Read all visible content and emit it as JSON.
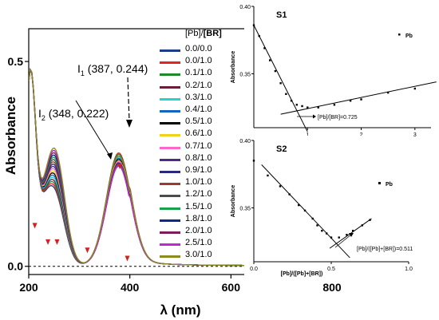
{
  "chart_data": [
    {
      "type": "line",
      "xlabel": "λ (nm)",
      "ylabel": "Absorbance",
      "xlim": [
        200,
        800
      ],
      "ylim": [
        -0.02,
        0.58
      ],
      "x_ticks": [
        "200",
        "400",
        "600",
        "800"
      ],
      "y_ticks": [
        "0.0",
        "0.5"
      ],
      "legend_title_prefix": "[Pb]/",
      "legend_title_bold": "[BR]",
      "legend_position": "right-of-plot",
      "series": [
        {
          "name": "0.0/0.0",
          "color": "#1e3a8a",
          "peak": 0.25
        },
        {
          "name": "0.0/1.0",
          "color": "#e8231f",
          "peak": 0.275
        },
        {
          "name": "0.1/1.0",
          "color": "#1f8a2b",
          "peak": 0.272
        },
        {
          "name": "0.2/1.0",
          "color": "#6b1d3a",
          "peak": 0.268
        },
        {
          "name": "0.3/1.0",
          "color": "#2ad1cc",
          "peak": 0.265
        },
        {
          "name": "0.4/1.0",
          "color": "#1565c0",
          "peak": 0.262
        },
        {
          "name": "0.5/1.0",
          "color": "#000000",
          "peak": 0.259
        },
        {
          "name": "0.6/1.0",
          "color": "#f0d21a",
          "peak": 0.256
        },
        {
          "name": "0.7/1.0",
          "color": "#ff66cc",
          "peak": 0.254
        },
        {
          "name": "0.8/1.0",
          "color": "#4b2a8c",
          "peak": 0.251
        },
        {
          "name": "0.9/1.0",
          "color": "#2a2a7a",
          "peak": 0.249
        },
        {
          "name": "1.0/1.0",
          "color": "#9b3b2f",
          "peak": 0.247
        },
        {
          "name": "1.2/1.0",
          "color": "#4c4c4c",
          "peak": 0.246
        },
        {
          "name": "1.5/1.0",
          "color": "#17a34a",
          "peak": 0.245
        },
        {
          "name": "1.8/1.0",
          "color": "#0d2a8a",
          "peak": 0.244
        },
        {
          "name": "2.0/1.0",
          "color": "#7a1f5a",
          "peak": 0.243
        },
        {
          "name": "2.5/1.0",
          "color": "#c026d3",
          "peak": 0.244
        },
        {
          "name": "3.0/1.0",
          "color": "#8a8a1f",
          "peak": 0.268
        }
      ],
      "annotations": [
        {
          "label_main": "I",
          "label_sub": "1",
          "label_tail": " (387, 0.244)"
        },
        {
          "label_main": "I",
          "label_sub": "2",
          "label_tail": " (348, 0.222)"
        }
      ]
    },
    {
      "type": "scatter",
      "panel_title": "S1",
      "xlabel": "[Pb]/[BR]",
      "ylabel": "Absorbance",
      "xlim": [
        0,
        3.3
      ],
      "ylim": [
        0.31,
        0.4
      ],
      "x_ticks": [
        "1",
        "2",
        "3"
      ],
      "y_ticks": [
        "0.40",
        "0.35"
      ],
      "legend": "Pb",
      "annotation": "[Pb]/[BR]=0.725",
      "points": [
        [
          0.0,
          0.386
        ],
        [
          0.1,
          0.378
        ],
        [
          0.2,
          0.369
        ],
        [
          0.3,
          0.36
        ],
        [
          0.4,
          0.352
        ],
        [
          0.5,
          0.343
        ],
        [
          0.6,
          0.335
        ],
        [
          0.7,
          0.33
        ],
        [
          0.8,
          0.327
        ],
        [
          0.9,
          0.326
        ],
        [
          1.0,
          0.325
        ],
        [
          1.2,
          0.325
        ],
        [
          1.5,
          0.327
        ],
        [
          1.8,
          0.33
        ],
        [
          2.0,
          0.331
        ],
        [
          2.5,
          0.336
        ],
        [
          3.0,
          0.339
        ]
      ],
      "fit_lines": [
        {
          "x": [
            0.0,
            1.0
          ],
          "y": [
            0.386,
            0.307
          ]
        },
        {
          "x": [
            0.5,
            3.4
          ],
          "y": [
            0.32,
            0.344
          ]
        }
      ]
    },
    {
      "type": "scatter",
      "panel_title": "S2",
      "xlabel": "[Pb]/([Pb]+[BR])",
      "ylabel": "Absorbance",
      "xlim": [
        0,
        1.0
      ],
      "ylim": [
        0.31,
        0.4
      ],
      "x_ticks": [
        "0.0",
        "0.5",
        "1.0"
      ],
      "y_ticks": [
        "0.40",
        "0.35"
      ],
      "legend": "Pb",
      "annotation": "[Pb]/([Pb]+[BR])=0.511",
      "points": [
        [
          0.0,
          0.385
        ],
        [
          0.09,
          0.374
        ],
        [
          0.17,
          0.366
        ],
        [
          0.23,
          0.36
        ],
        [
          0.29,
          0.352
        ],
        [
          0.33,
          0.348
        ],
        [
          0.38,
          0.342
        ],
        [
          0.41,
          0.337
        ],
        [
          0.44,
          0.333
        ],
        [
          0.47,
          0.331
        ],
        [
          0.5,
          0.328
        ],
        [
          0.55,
          0.328
        ],
        [
          0.6,
          0.33
        ],
        [
          0.64,
          0.333
        ],
        [
          0.7,
          0.337
        ],
        [
          0.75,
          0.341
        ]
      ],
      "fit_lines": [
        {
          "x": [
            0.05,
            0.62
          ],
          "y": [
            0.382,
            0.313
          ]
        },
        {
          "x": [
            0.49,
            0.76
          ],
          "y": [
            0.32,
            0.342
          ]
        }
      ]
    }
  ]
}
